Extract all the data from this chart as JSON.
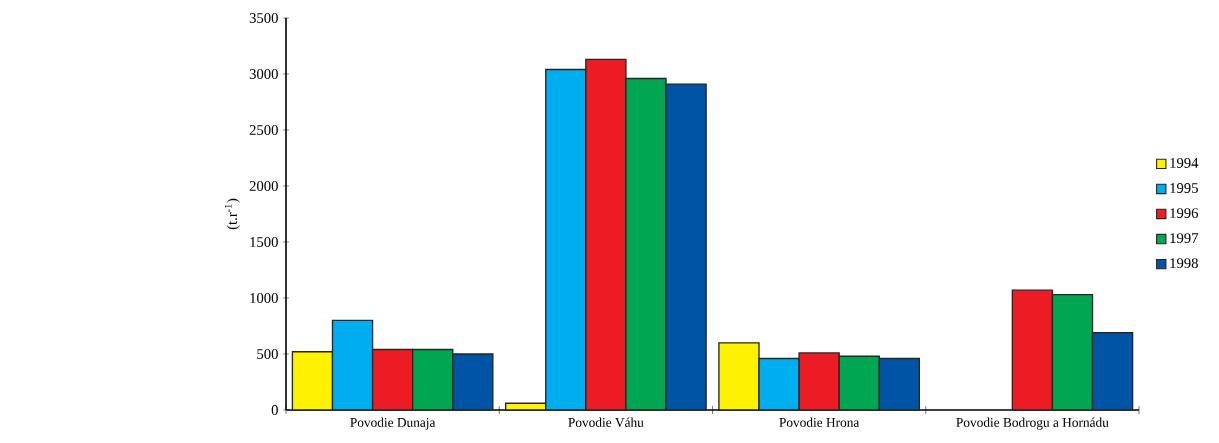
{
  "chart_data": {
    "type": "bar",
    "ylabel": "(t.r$^{-1}$)",
    "categories": [
      "Povodie Dunaja",
      "Povodie Váhu",
      "Povodie Hrona",
      "Povodie Bodrogu a Hornádu"
    ],
    "series": [
      {
        "name": "1994",
        "color": "#fff200",
        "values": [
          520,
          60,
          600,
          null
        ]
      },
      {
        "name": "1995",
        "color": "#00aeef",
        "values": [
          800,
          3040,
          460,
          null
        ]
      },
      {
        "name": "1996",
        "color": "#ed1c24",
        "values": [
          540,
          3130,
          510,
          1070
        ]
      },
      {
        "name": "1997",
        "color": "#00a651",
        "values": [
          540,
          2960,
          480,
          1030
        ]
      },
      {
        "name": "1998",
        "color": "#0054a6",
        "values": [
          500,
          2910,
          460,
          690
        ]
      }
    ],
    "ylim": [
      0,
      3500
    ],
    "yticks": [
      0,
      500,
      1000,
      1500,
      2000,
      2500,
      3000,
      3500
    ],
    "grid": false,
    "legend": "right"
  }
}
